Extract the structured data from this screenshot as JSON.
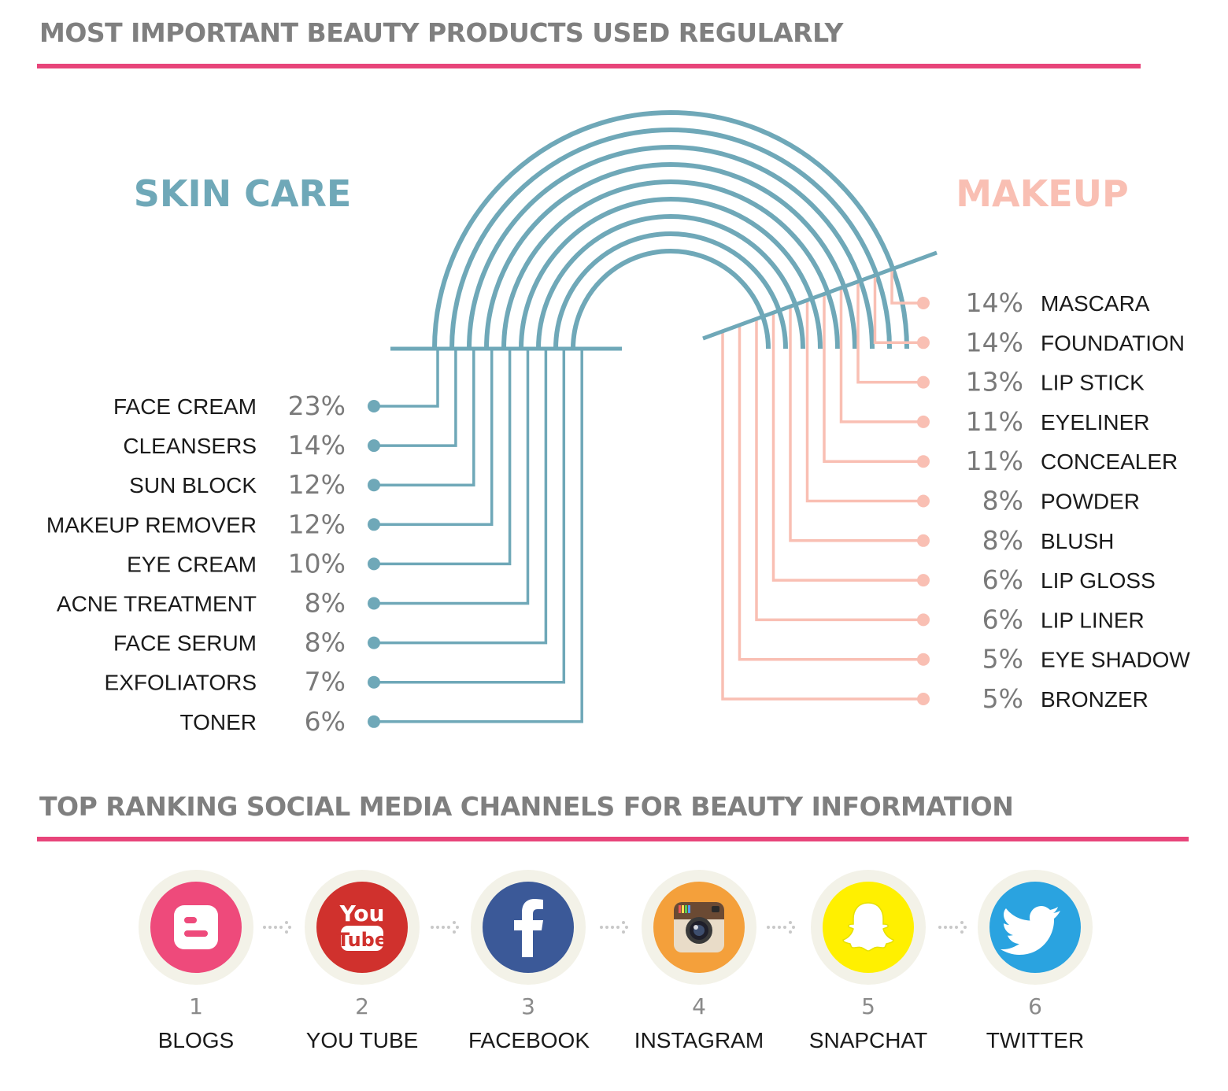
{
  "sections": {
    "products_title": "MOST IMPORTANT BEAUTY PRODUCTS USED REGULARLY",
    "social_title": "TOP RANKING SOCIAL MEDIA CHANNELS FOR BEAUTY INFORMATION"
  },
  "colors": {
    "skin_care": "#6fa8b8",
    "makeup": "#f9bfb3",
    "accent_rule": "#e8457a",
    "heading_gray": "#7f7f7f"
  },
  "chart_data": {
    "type": "bar",
    "title": "MOST IMPORTANT BEAUTY PRODUCTS USED REGULARLY",
    "unit": "%",
    "series": [
      {
        "name": "SKIN CARE",
        "categories": [
          "FACE CREAM",
          "CLEANSERS",
          "SUN BLOCK",
          "MAKEUP REMOVER",
          "EYE CREAM",
          "ACNE TREATMENT",
          "FACE SERUM",
          "EXFOLIATORS",
          "TONER"
        ],
        "values": [
          23,
          14,
          12,
          12,
          10,
          8,
          8,
          7,
          6
        ]
      },
      {
        "name": "MAKEUP",
        "categories": [
          "MASCARA",
          "FOUNDATION",
          "LIP STICK",
          "EYELINER",
          "CONCEALER",
          "POWDER",
          "BLUSH",
          "LIP GLOSS",
          "LIP LINER",
          "EYE SHADOW",
          "BRONZER"
        ],
        "values": [
          14,
          14,
          13,
          11,
          11,
          8,
          8,
          6,
          6,
          5,
          5
        ]
      }
    ]
  },
  "social": {
    "channels": [
      {
        "rank": "1",
        "name": "BLOGS",
        "icon": "blogger-icon",
        "color": "#ee4a7b"
      },
      {
        "rank": "2",
        "name": "YOU TUBE",
        "icon": "youtube-icon",
        "color": "#d0312d",
        "logo_top": "You",
        "logo_bottom": "Tube"
      },
      {
        "rank": "3",
        "name": "FACEBOOK",
        "icon": "facebook-icon",
        "color": "#3b5998"
      },
      {
        "rank": "4",
        "name": "INSTAGRAM",
        "icon": "instagram-icon",
        "color": "#f4a03b"
      },
      {
        "rank": "5",
        "name": "SNAPCHAT",
        "icon": "snapchat-icon",
        "color": "#fff000"
      },
      {
        "rank": "6",
        "name": "TWITTER",
        "icon": "twitter-icon",
        "color": "#2aa3e0"
      }
    ]
  }
}
